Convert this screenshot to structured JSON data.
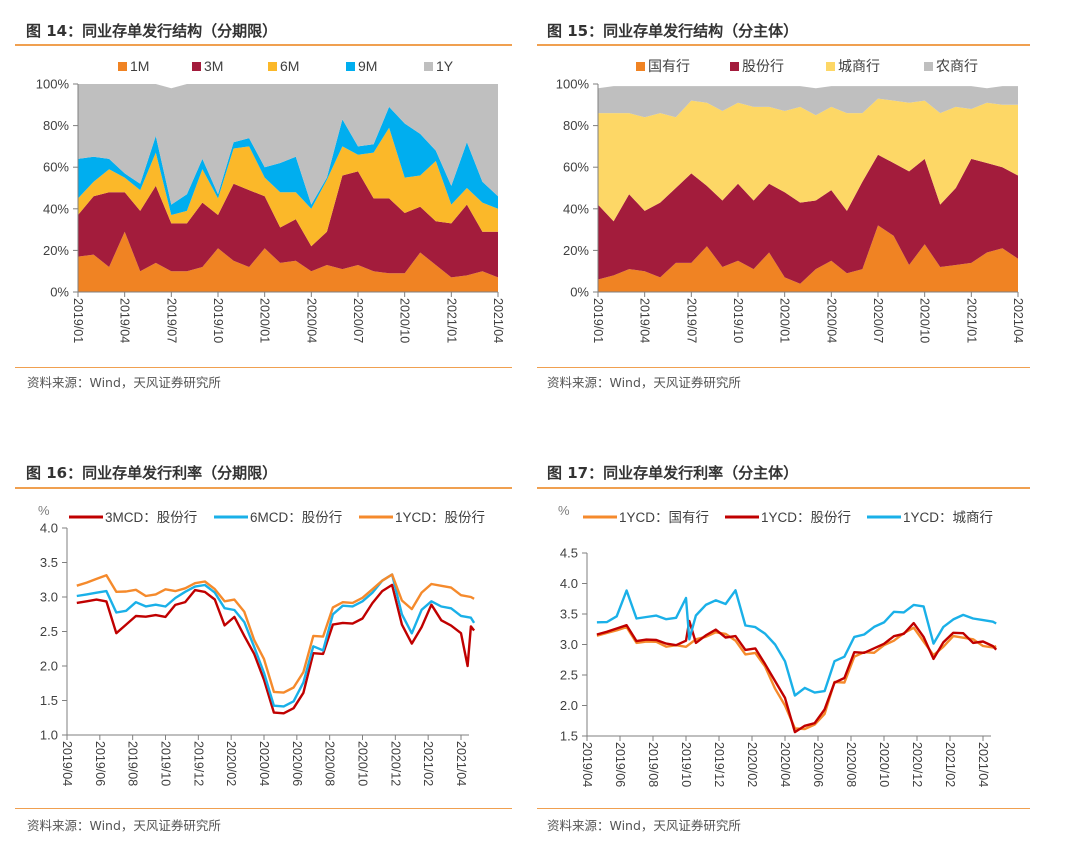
{
  "figures": [
    {
      "title": "图 14：同业存单发行结构（分期限）",
      "source": "资料来源：Wind，天风证券研究所"
    },
    {
      "title": "图 15：同业存单发行结构（分主体）",
      "source": "资料来源：Wind，天风证券研究所"
    },
    {
      "title": "图 16：同业存单发行利率（分期限）",
      "source": "资料来源：Wind，天风证券研究所"
    },
    {
      "title": "图 17：同业存单发行利率（分主体）",
      "source": "资料来源：Wind，天风证券研究所"
    }
  ],
  "chart_data": [
    {
      "type": "area",
      "stacked": true,
      "title": "图 14：同业存单发行结构（分期限）",
      "xlabel": "",
      "ylabel": "",
      "ylim": [
        0,
        100
      ],
      "yticks": [
        "0%",
        "20%",
        "40%",
        "60%",
        "80%",
        "100%"
      ],
      "xticks": [
        "2019/01",
        "2019/04",
        "2019/07",
        "2019/10",
        "2020/01",
        "2020/04",
        "2020/07",
        "2020/10",
        "2021/01",
        "2021/04"
      ],
      "x": [
        "2019/01",
        "2019/02",
        "2019/03",
        "2019/04",
        "2019/05",
        "2019/06",
        "2019/07",
        "2019/08",
        "2019/09",
        "2019/10",
        "2019/11",
        "2019/12",
        "2020/01",
        "2020/02",
        "2020/03",
        "2020/04",
        "2020/05",
        "2020/06",
        "2020/07",
        "2020/08",
        "2020/09",
        "2020/10",
        "2020/11",
        "2020/12",
        "2021/01",
        "2021/02",
        "2021/03",
        "2021/04"
      ],
      "legend_position": "top",
      "series": [
        {
          "name": "1M",
          "color": "#f08323",
          "values": [
            17,
            18,
            12,
            29,
            10,
            14,
            10,
            10,
            12,
            21,
            15,
            12,
            21,
            14,
            15,
            10,
            13,
            11,
            13,
            10,
            9,
            9,
            19,
            13,
            7,
            8,
            10,
            7
          ]
        },
        {
          "name": "3M",
          "color": "#a31c3c",
          "values": [
            20,
            28,
            36,
            19,
            29,
            37,
            23,
            23,
            31,
            16,
            37,
            37,
            25,
            17,
            20,
            12,
            16,
            45,
            45,
            35,
            36,
            29,
            22,
            21,
            26,
            34,
            19,
            22
          ]
        },
        {
          "name": "6M",
          "color": "#fbb829",
          "values": [
            8,
            7,
            11,
            7,
            10,
            16,
            4,
            6,
            16,
            8,
            17,
            21,
            9,
            17,
            13,
            18,
            25,
            14,
            8,
            22,
            34,
            17,
            15,
            29,
            9,
            8,
            14,
            11
          ]
        },
        {
          "name": "9M",
          "color": "#00aeef",
          "values": [
            19,
            12,
            5,
            2,
            3,
            8,
            5,
            8,
            5,
            2,
            3,
            4,
            5,
            14,
            17,
            2,
            1,
            13,
            4,
            4,
            10,
            26,
            20,
            5,
            9,
            22,
            10,
            6
          ]
        },
        {
          "name": "1Y",
          "color": "#bfbfbf",
          "values": [
            36,
            35,
            36,
            43,
            48,
            25,
            56,
            53,
            36,
            53,
            28,
            26,
            40,
            38,
            35,
            58,
            45,
            17,
            30,
            29,
            11,
            19,
            24,
            32,
            49,
            28,
            47,
            54
          ]
        }
      ]
    },
    {
      "type": "area",
      "stacked": true,
      "title": "图 15：同业存单发行结构（分主体）",
      "xlabel": "",
      "ylabel": "",
      "ylim": [
        0,
        100
      ],
      "yticks": [
        "0%",
        "20%",
        "40%",
        "60%",
        "80%",
        "100%"
      ],
      "xticks": [
        "2019/01",
        "2019/04",
        "2019/07",
        "2019/10",
        "2020/01",
        "2020/04",
        "2020/07",
        "2020/10",
        "2021/01",
        "2021/04"
      ],
      "x": [
        "2019/01",
        "2019/02",
        "2019/03",
        "2019/04",
        "2019/05",
        "2019/06",
        "2019/07",
        "2019/08",
        "2019/09",
        "2019/10",
        "2019/11",
        "2019/12",
        "2020/01",
        "2020/02",
        "2020/03",
        "2020/04",
        "2020/05",
        "2020/06",
        "2020/07",
        "2020/08",
        "2020/09",
        "2020/10",
        "2020/11",
        "2020/12",
        "2021/01",
        "2021/02",
        "2021/03",
        "2021/04"
      ],
      "legend_position": "top",
      "series": [
        {
          "name": "国有行",
          "color": "#f08323",
          "values": [
            6,
            8,
            11,
            10,
            7,
            14,
            14,
            22,
            12,
            15,
            11,
            19,
            7,
            4,
            11,
            15,
            9,
            11,
            32,
            27,
            13,
            23,
            12,
            13,
            14,
            19,
            21,
            16
          ]
        },
        {
          "name": "股份行",
          "color": "#a31c3c",
          "values": [
            36,
            26,
            36,
            29,
            36,
            36,
            43,
            29,
            32,
            37,
            33,
            33,
            41,
            39,
            33,
            34,
            30,
            42,
            34,
            35,
            45,
            41,
            30,
            37,
            50,
            43,
            39,
            40
          ]
        },
        {
          "name": "城商行",
          "color": "#fdd766",
          "values": [
            44,
            52,
            39,
            45,
            43,
            34,
            35,
            40,
            43,
            39,
            45,
            37,
            39,
            46,
            41,
            40,
            47,
            33,
            27,
            30,
            33,
            28,
            44,
            39,
            24,
            29,
            30,
            34
          ]
        },
        {
          "name": "农商行",
          "color": "#bfbfbf",
          "values": [
            12,
            13,
            13,
            15,
            13,
            15,
            7,
            8,
            12,
            8,
            10,
            10,
            12,
            10,
            13,
            10,
            13,
            13,
            6,
            7,
            8,
            7,
            13,
            10,
            11,
            7,
            9,
            9
          ]
        }
      ]
    },
    {
      "type": "line",
      "title": "图 16：同业存单发行利率（分期限）",
      "ylabel": "%",
      "ylim": [
        1.0,
        4.0
      ],
      "yticks": [
        "1.0",
        "1.5",
        "2.0",
        "2.5",
        "3.0",
        "3.5",
        "4.0"
      ],
      "xticks": [
        "2019/04",
        "2019/06",
        "2019/08",
        "2019/10",
        "2019/12",
        "2020/02",
        "2020/04",
        "2020/06",
        "2020/08",
        "2020/10",
        "2020/12",
        "2021/02",
        "2021/04"
      ],
      "x_range": [
        "2019/04",
        "2021/04"
      ],
      "legend_position": "top",
      "series": [
        {
          "name": "3MCD：股份行",
          "color": "#c00000",
          "x": [
            0.3,
            0.6,
            0.9,
            1.2,
            1.5,
            1.8,
            2.1,
            2.4,
            2.7,
            3.0,
            3.3,
            3.6,
            3.9,
            4.2,
            4.5,
            4.8,
            5.1,
            5.4,
            5.7,
            6.0,
            6.3,
            6.6,
            6.9,
            7.2,
            7.5,
            7.8,
            8.1,
            8.4,
            8.7,
            9.0,
            9.3,
            9.6,
            9.9,
            10.2,
            10.5,
            10.8,
            11.1,
            11.4,
            11.7,
            12.0,
            12.2,
            12.3,
            12.4
          ],
          "values": [
            2.95,
            2.95,
            2.95,
            2.9,
            2.5,
            2.6,
            2.7,
            2.75,
            2.75,
            2.7,
            2.85,
            2.95,
            3.1,
            3.05,
            3.0,
            2.6,
            2.7,
            2.4,
            2.2,
            1.8,
            1.3,
            1.35,
            1.4,
            1.6,
            2.15,
            2.2,
            2.6,
            2.6,
            2.65,
            2.7,
            2.9,
            3.05,
            3.2,
            2.6,
            2.3,
            2.6,
            2.9,
            2.65,
            2.55,
            2.5,
            2.0,
            2.55,
            2.55
          ]
        },
        {
          "name": "6MCD：股份行",
          "color": "#1ab0e8",
          "x": [
            0.3,
            0.6,
            0.9,
            1.2,
            1.5,
            1.8,
            2.1,
            2.4,
            2.7,
            3.0,
            3.3,
            3.6,
            3.9,
            4.2,
            4.5,
            4.8,
            5.1,
            5.4,
            5.7,
            6.0,
            6.3,
            6.6,
            6.9,
            7.2,
            7.5,
            7.8,
            8.1,
            8.4,
            8.7,
            9.0,
            9.3,
            9.6,
            9.9,
            10.2,
            10.5,
            10.8,
            11.1,
            11.4,
            11.7,
            12.0,
            12.3,
            12.4
          ],
          "values": [
            3.05,
            3.05,
            3.05,
            3.05,
            2.8,
            2.8,
            2.9,
            2.9,
            2.9,
            2.85,
            2.95,
            3.1,
            3.15,
            3.15,
            3.1,
            2.85,
            2.8,
            2.6,
            2.3,
            1.9,
            1.4,
            1.45,
            1.5,
            1.75,
            2.25,
            2.25,
            2.75,
            2.85,
            2.9,
            2.95,
            3.05,
            3.2,
            3.35,
            2.75,
            2.45,
            2.85,
            2.95,
            2.85,
            2.8,
            2.75,
            2.7,
            2.6
          ]
        },
        {
          "name": "1YCD：股份行",
          "color": "#f58a2c",
          "x": [
            0.3,
            0.6,
            0.9,
            1.2,
            1.5,
            1.8,
            2.1,
            2.4,
            2.7,
            3.0,
            3.3,
            3.6,
            3.9,
            4.2,
            4.5,
            4.8,
            5.1,
            5.4,
            5.7,
            6.0,
            6.3,
            6.6,
            6.9,
            7.2,
            7.5,
            7.8,
            8.1,
            8.4,
            8.7,
            9.0,
            9.3,
            9.6,
            9.9,
            10.2,
            10.5,
            10.8,
            11.1,
            11.4,
            11.7,
            12.0,
            12.3,
            12.4
          ],
          "values": [
            3.2,
            3.22,
            3.25,
            3.28,
            3.1,
            3.08,
            3.08,
            3.05,
            3.05,
            3.1,
            3.05,
            3.15,
            3.2,
            3.2,
            3.15,
            2.95,
            2.95,
            2.75,
            2.4,
            2.1,
            1.6,
            1.65,
            1.7,
            1.9,
            2.4,
            2.45,
            2.85,
            2.9,
            2.95,
            3.0,
            3.1,
            3.2,
            3.35,
            2.95,
            2.8,
            3.1,
            3.2,
            3.15,
            3.1,
            3.05,
            3.0,
            2.95
          ]
        }
      ]
    },
    {
      "type": "line",
      "title": "图 17：同业存单发行利率（分主体）",
      "ylabel": "%",
      "ylim": [
        1.5,
        4.5
      ],
      "yticks": [
        "1.5",
        "2.0",
        "2.5",
        "3.0",
        "3.5",
        "4.0",
        "4.5"
      ],
      "xticks": [
        "2019/04",
        "2019/06",
        "2019/08",
        "2019/10",
        "2019/12",
        "2020/02",
        "2020/04",
        "2020/06",
        "2020/08",
        "2020/10",
        "2020/12",
        "2021/02",
        "2021/04"
      ],
      "x_range": [
        "2019/04",
        "2021/04"
      ],
      "legend_position": "top",
      "series": [
        {
          "name": "1YCD：国有行",
          "color": "#f58a2c",
          "x": [
            0.3,
            0.6,
            0.9,
            1.2,
            1.5,
            1.8,
            2.1,
            2.4,
            2.7,
            3.0,
            3.3,
            3.6,
            3.9,
            4.2,
            4.5,
            4.8,
            5.1,
            5.4,
            5.7,
            6.0,
            6.3,
            6.6,
            6.9,
            7.2,
            7.5,
            7.8,
            8.1,
            8.4,
            8.7,
            9.0,
            9.3,
            9.6,
            9.9,
            10.2,
            10.5,
            10.8,
            11.1,
            11.4,
            11.7,
            12.0,
            12.3,
            12.4
          ],
          "values": [
            3.18,
            3.2,
            3.22,
            3.25,
            3.05,
            3.05,
            3.02,
            3.0,
            3.0,
            2.95,
            3.05,
            3.15,
            3.2,
            3.15,
            3.1,
            2.85,
            2.85,
            2.6,
            2.3,
            2.0,
            1.6,
            1.65,
            1.7,
            1.85,
            2.35,
            2.4,
            2.8,
            2.85,
            2.9,
            3.0,
            3.05,
            3.15,
            3.3,
            3.05,
            2.8,
            3.0,
            3.15,
            3.1,
            3.05,
            3.0,
            2.95,
            2.95
          ]
        },
        {
          "name": "1YCD：股份行",
          "color": "#c00000",
          "x": [
            0.3,
            0.6,
            0.9,
            1.2,
            1.5,
            1.8,
            2.1,
            2.4,
            2.7,
            3.0,
            3.1,
            3.3,
            3.6,
            3.9,
            4.2,
            4.5,
            4.8,
            5.1,
            5.4,
            5.7,
            6.0,
            6.3,
            6.6,
            6.9,
            7.2,
            7.5,
            7.8,
            8.1,
            8.4,
            8.7,
            9.0,
            9.3,
            9.6,
            9.9,
            10.2,
            10.5,
            10.8,
            11.1,
            11.4,
            11.7,
            12.0,
            12.3,
            12.4
          ],
          "values": [
            3.2,
            3.22,
            3.25,
            3.28,
            3.08,
            3.08,
            3.05,
            3.05,
            3.0,
            3.05,
            3.35,
            3.05,
            3.15,
            3.22,
            3.15,
            3.15,
            2.9,
            2.9,
            2.7,
            2.4,
            2.1,
            1.6,
            1.68,
            1.7,
            1.9,
            2.4,
            2.45,
            2.85,
            2.9,
            2.95,
            3.0,
            3.1,
            3.2,
            3.35,
            3.1,
            2.8,
            3.05,
            3.18,
            3.15,
            3.05,
            3.05,
            2.95,
            2.95
          ]
        },
        {
          "name": "1YCD：城商行",
          "color": "#1ab0e8",
          "x": [
            0.3,
            0.6,
            0.9,
            1.2,
            1.5,
            1.8,
            2.1,
            2.4,
            2.7,
            3.0,
            3.1,
            3.3,
            3.6,
            3.9,
            4.2,
            4.5,
            4.8,
            5.1,
            5.4,
            5.7,
            6.0,
            6.3,
            6.6,
            6.9,
            7.2,
            7.5,
            7.8,
            8.1,
            8.4,
            8.7,
            9.0,
            9.3,
            9.6,
            9.9,
            10.2,
            10.5,
            10.8,
            11.1,
            11.4,
            11.7,
            12.0,
            12.3,
            12.4
          ],
          "values": [
            3.4,
            3.38,
            3.45,
            3.85,
            3.45,
            3.45,
            3.45,
            3.45,
            3.45,
            3.75,
            3.05,
            3.5,
            3.65,
            3.7,
            3.7,
            3.9,
            3.3,
            3.25,
            3.2,
            3.0,
            2.7,
            2.2,
            2.3,
            2.2,
            2.2,
            2.75,
            2.8,
            3.1,
            3.2,
            3.3,
            3.35,
            3.5,
            3.55,
            3.65,
            3.6,
            3.05,
            3.3,
            3.4,
            3.45,
            3.45,
            3.4,
            3.35,
            3.38
          ]
        }
      ]
    }
  ]
}
